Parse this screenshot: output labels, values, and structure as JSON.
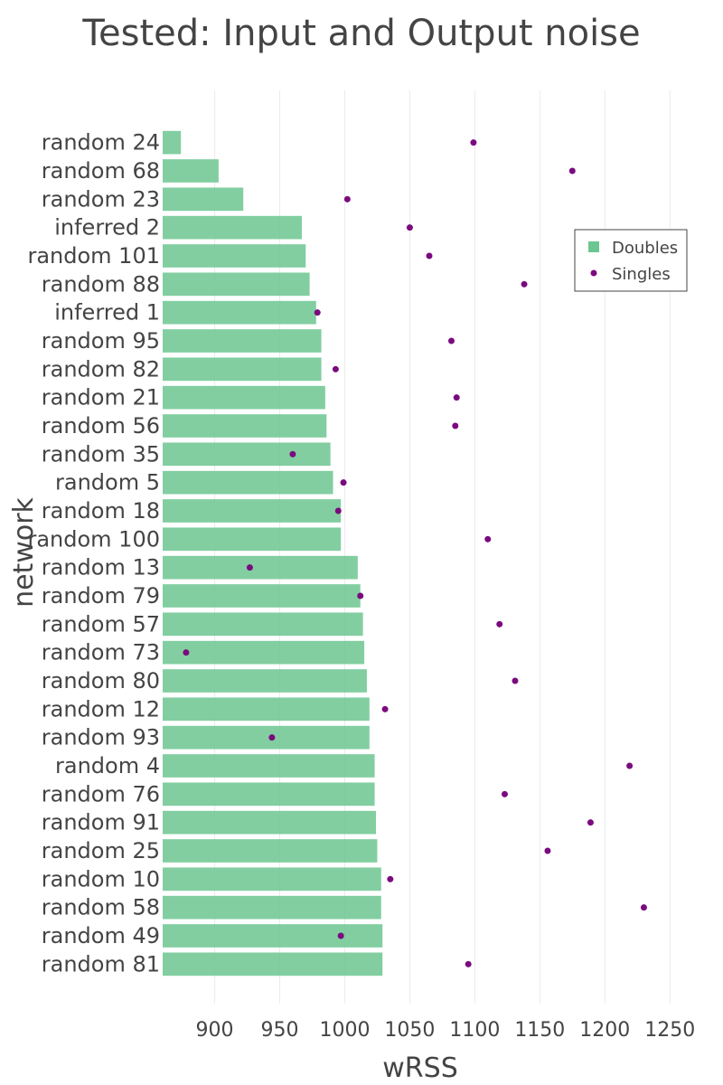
{
  "chart_data": {
    "type": "bar",
    "title": "Tested: Input and Output noise",
    "xlabel": "wRSS",
    "ylabel": "network",
    "orientation": "horizontal",
    "xlim": [
      860,
      1270
    ],
    "xticks": [
      900,
      950,
      1000,
      1050,
      1100,
      1150,
      1200,
      1250
    ],
    "grid": true,
    "legend_position": "top-right",
    "categories": [
      "random 24",
      "random 68",
      "random 23",
      "inferred 2",
      "random 101",
      "random 88",
      "inferred 1",
      "random 95",
      "random 82",
      "random 21",
      "random 56",
      "random 35",
      "random 5",
      "random 18",
      "random 100",
      "random 13",
      "random 79",
      "random 57",
      "random 73",
      "random 80",
      "random 12",
      "random 93",
      "random 4",
      "random 76",
      "random 91",
      "random 25",
      "random 10",
      "random 58",
      "random 49",
      "random 81"
    ],
    "series": [
      {
        "name": "Doubles",
        "kind": "bar",
        "color": "#6cc691",
        "values": [
          874,
          903,
          922,
          967,
          970,
          973,
          978,
          982,
          982,
          985,
          986,
          989,
          991,
          997,
          997,
          1010,
          1012,
          1014,
          1015,
          1017,
          1019,
          1019,
          1023,
          1023,
          1024,
          1025,
          1028,
          1028,
          1029,
          1029
        ]
      },
      {
        "name": "Singles",
        "kind": "scatter",
        "color": "#7b0a7f",
        "values": [
          1099,
          1175,
          1002,
          1050,
          1065,
          1138,
          979,
          1082,
          993,
          1086,
          1085,
          960,
          999,
          995,
          1110,
          927,
          1012,
          1119,
          878,
          1131,
          1031,
          944,
          1219,
          1123,
          1189,
          1156,
          1035,
          1230,
          997,
          1095
        ]
      }
    ]
  }
}
